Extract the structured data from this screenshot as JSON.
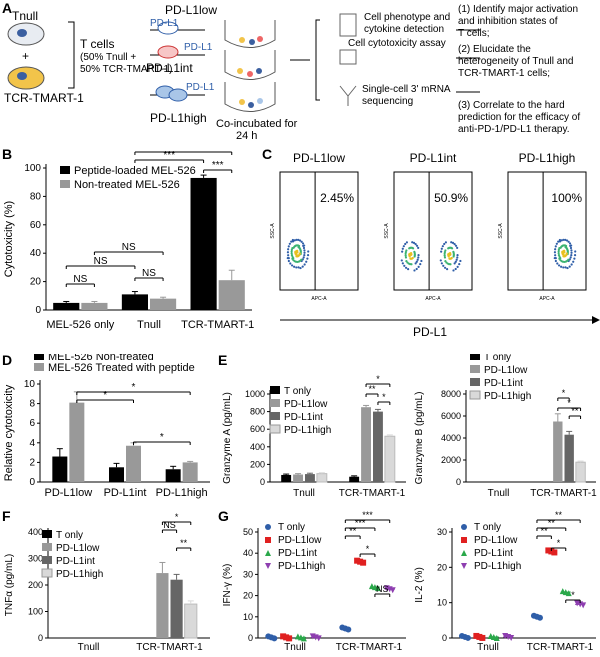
{
  "panel_labels": {
    "a": "A",
    "b": "B",
    "c": "C",
    "d": "D",
    "e": "E",
    "f": "F",
    "g": "G"
  },
  "schematic": {
    "tnull": "Tnull",
    "tcr": "TCR-TMART-1",
    "plus": "+",
    "t_cells": "T cells",
    "mix_line1": "(50% Tnull +",
    "mix_line2": "50% TCR-TMART-1)",
    "pdl1": "PD-L1",
    "pdl1_low": "PD-L1low",
    "pdl1_int": "PD-L1int",
    "pdl1_high": "PD-L1high",
    "coincubated": "Co-incubated for",
    "hours": "24 h",
    "assay1": "Cell phenotype and",
    "assay1b": "cytokine detection",
    "assay2": "Cell cytotoxicity assay",
    "assay3": "Single-cell 3' mRNA",
    "assay3b": "sequencing",
    "goals": [
      "(1) Identify major activation",
      "and inhibition states of",
      "T cells;",
      "(2) Elucidate the",
      "heterogeneity of Tnull and",
      "TCR-TMART-1 cells;",
      "(3) Correlate to the hard",
      "prediction for the efficacy of",
      "anti-PD-1/PD-L1 therapy."
    ]
  },
  "chart_data": [
    {
      "id": "B",
      "type": "bar",
      "ylabel": "Cytotoxicity (%)",
      "ylim": [
        0,
        100
      ],
      "yticks": [
        "0",
        "20",
        "40",
        "60",
        "80",
        "100"
      ],
      "categories": [
        "MEL-526 only",
        "Tnull",
        "TCR-TMART-1"
      ],
      "series": [
        {
          "name": "Peptide-loaded MEL-526",
          "color": "#000000",
          "values": [
            5,
            11,
            93
          ],
          "err": [
            1,
            2,
            2
          ]
        },
        {
          "name": "Non-treated MEL-526",
          "color": "#999999",
          "values": [
            5,
            8,
            21
          ],
          "err": [
            1,
            1,
            7
          ]
        }
      ],
      "significance": [
        "NS",
        "NS",
        "NS",
        "NS",
        "***",
        "*",
        "***"
      ]
    },
    {
      "id": "C",
      "type": "scatter",
      "xlabel": "PD-L1",
      "x_axis_name": "APC-A",
      "y_axis_name": "SSC-A",
      "plots": [
        {
          "title": "PD-L1low",
          "percent": "2.45%"
        },
        {
          "title": "PD-L1int",
          "percent": "50.9%"
        },
        {
          "title": "PD-L1high",
          "percent": "100%"
        }
      ]
    },
    {
      "id": "D",
      "type": "bar",
      "ylabel": "Relative cytotoxicity",
      "ylim": [
        0,
        10
      ],
      "yticks": [
        "0",
        "2",
        "4",
        "6",
        "8",
        "10"
      ],
      "categories": [
        "PD-L1low",
        "PD-L1int",
        "PD-L1high"
      ],
      "series": [
        {
          "name": "MEL-526 Non-treated",
          "color": "#000000",
          "values": [
            2.6,
            1.5,
            1.3
          ],
          "err": [
            0.8,
            0.4,
            0.3
          ]
        },
        {
          "name": "MEL-526 Treated with peptide",
          "color": "#999999",
          "values": [
            8.1,
            3.7,
            2.0
          ],
          "err": [
            1.1,
            0.3,
            0.1
          ]
        }
      ],
      "significance": [
        "*",
        "*",
        "*"
      ]
    },
    {
      "id": "E1",
      "type": "bar",
      "ylabel": "Granzyme A (pg/mL)",
      "ylim": [
        0,
        1000
      ],
      "yticks": [
        "0",
        "200",
        "400",
        "600",
        "800",
        "1000"
      ],
      "categories": [
        "Tnull",
        "TCR-TMART-1"
      ],
      "series": [
        {
          "name": "T only",
          "color": "#000000",
          "values": [
            80,
            60
          ],
          "err": [
            10,
            10
          ]
        },
        {
          "name": "PD-L1low",
          "color": "#999999",
          "values": [
            85,
            850
          ],
          "err": [
            10,
            20
          ]
        },
        {
          "name": "PD-L1int",
          "color": "#666666",
          "values": [
            90,
            800
          ],
          "err": [
            10,
            25
          ]
        },
        {
          "name": "PD-L1high",
          "color": "#d9d9d9",
          "values": [
            95,
            520
          ],
          "err": [
            10,
            15
          ]
        }
      ],
      "significance": [
        "**",
        "*",
        "*"
      ]
    },
    {
      "id": "E2",
      "type": "bar",
      "ylabel": "Granzyme B (pg/mL)",
      "ylim": [
        0,
        8000
      ],
      "yticks": [
        "0",
        "2000",
        "4000",
        "6000",
        "8000"
      ],
      "categories": [
        "Tnull",
        "TCR-TMART-1"
      ],
      "series": [
        {
          "name": "T only",
          "color": "#000000",
          "values": [
            0,
            0
          ],
          "err": [
            0,
            0
          ]
        },
        {
          "name": "PD-L1low",
          "color": "#999999",
          "values": [
            0,
            5500
          ],
          "err": [
            0,
            700
          ]
        },
        {
          "name": "PD-L1int",
          "color": "#666666",
          "values": [
            0,
            4300
          ],
          "err": [
            0,
            300
          ]
        },
        {
          "name": "PD-L1high",
          "color": "#d9d9d9",
          "values": [
            0,
            1800
          ],
          "err": [
            0,
            100
          ]
        }
      ],
      "significance": [
        "*",
        "*",
        "**"
      ]
    },
    {
      "id": "F",
      "type": "bar",
      "ylabel": "TNFα (pg/mL)",
      "ylim": [
        0,
        400
      ],
      "yticks": [
        "0",
        "100",
        "200",
        "300",
        "400"
      ],
      "categories": [
        "Tnull",
        "TCR-TMART-1"
      ],
      "series": [
        {
          "name": "T only",
          "color": "#000000",
          "values": [
            0,
            0
          ],
          "err": [
            0,
            0
          ]
        },
        {
          "name": "PD-L1low",
          "color": "#999999",
          "values": [
            0,
            245
          ],
          "err": [
            0,
            40
          ]
        },
        {
          "name": "PD-L1int",
          "color": "#666666",
          "values": [
            0,
            220
          ],
          "err": [
            0,
            20
          ]
        },
        {
          "name": "PD-L1high",
          "color": "#d9d9d9",
          "values": [
            0,
            128
          ],
          "err": [
            0,
            12
          ]
        }
      ],
      "significance": [
        "NS",
        "*",
        "**"
      ]
    },
    {
      "id": "G1",
      "type": "scatter",
      "ylabel": "IFN-γ (%)",
      "ylim": [
        0,
        50
      ],
      "yticks": [
        "0",
        "10",
        "20",
        "30",
        "40",
        "50"
      ],
      "categories": [
        "Tnull",
        "TCR-TMART-1"
      ],
      "series": [
        {
          "name": "T only",
          "color": "#2f5ea8",
          "marker": "circle",
          "values": [
            0.3,
            4.5
          ]
        },
        {
          "name": "PD-L1low",
          "color": "#e02020",
          "marker": "square",
          "values": [
            0.3,
            36
          ]
        },
        {
          "name": "PD-L1int",
          "color": "#2aa84a",
          "marker": "triangle",
          "values": [
            0.3,
            24
          ]
        },
        {
          "name": "PD-L1high",
          "color": "#8e3fb0",
          "marker": "triangle-down",
          "values": [
            0.3,
            23
          ]
        }
      ],
      "significance": [
        "***",
        "***",
        "**",
        "*",
        "NS"
      ]
    },
    {
      "id": "G2",
      "type": "scatter",
      "ylabel": "IL-2 (%)",
      "ylim": [
        0,
        30
      ],
      "yticks": [
        "0",
        "10",
        "20",
        "30"
      ],
      "categories": [
        "Tnull",
        "TCR-TMART-1"
      ],
      "series": [
        {
          "name": "T only",
          "color": "#2f5ea8",
          "marker": "circle",
          "values": [
            0.3,
            6
          ]
        },
        {
          "name": "PD-L1low",
          "color": "#e02020",
          "marker": "square",
          "values": [
            0.3,
            24.5
          ]
        },
        {
          "name": "PD-L1int",
          "color": "#2aa84a",
          "marker": "triangle",
          "values": [
            0.3,
            13
          ]
        },
        {
          "name": "PD-L1high",
          "color": "#8e3fb0",
          "marker": "triangle-down",
          "values": [
            0.3,
            9.5
          ]
        }
      ],
      "significance": [
        "**",
        "**",
        "**",
        "*",
        "*"
      ]
    }
  ]
}
